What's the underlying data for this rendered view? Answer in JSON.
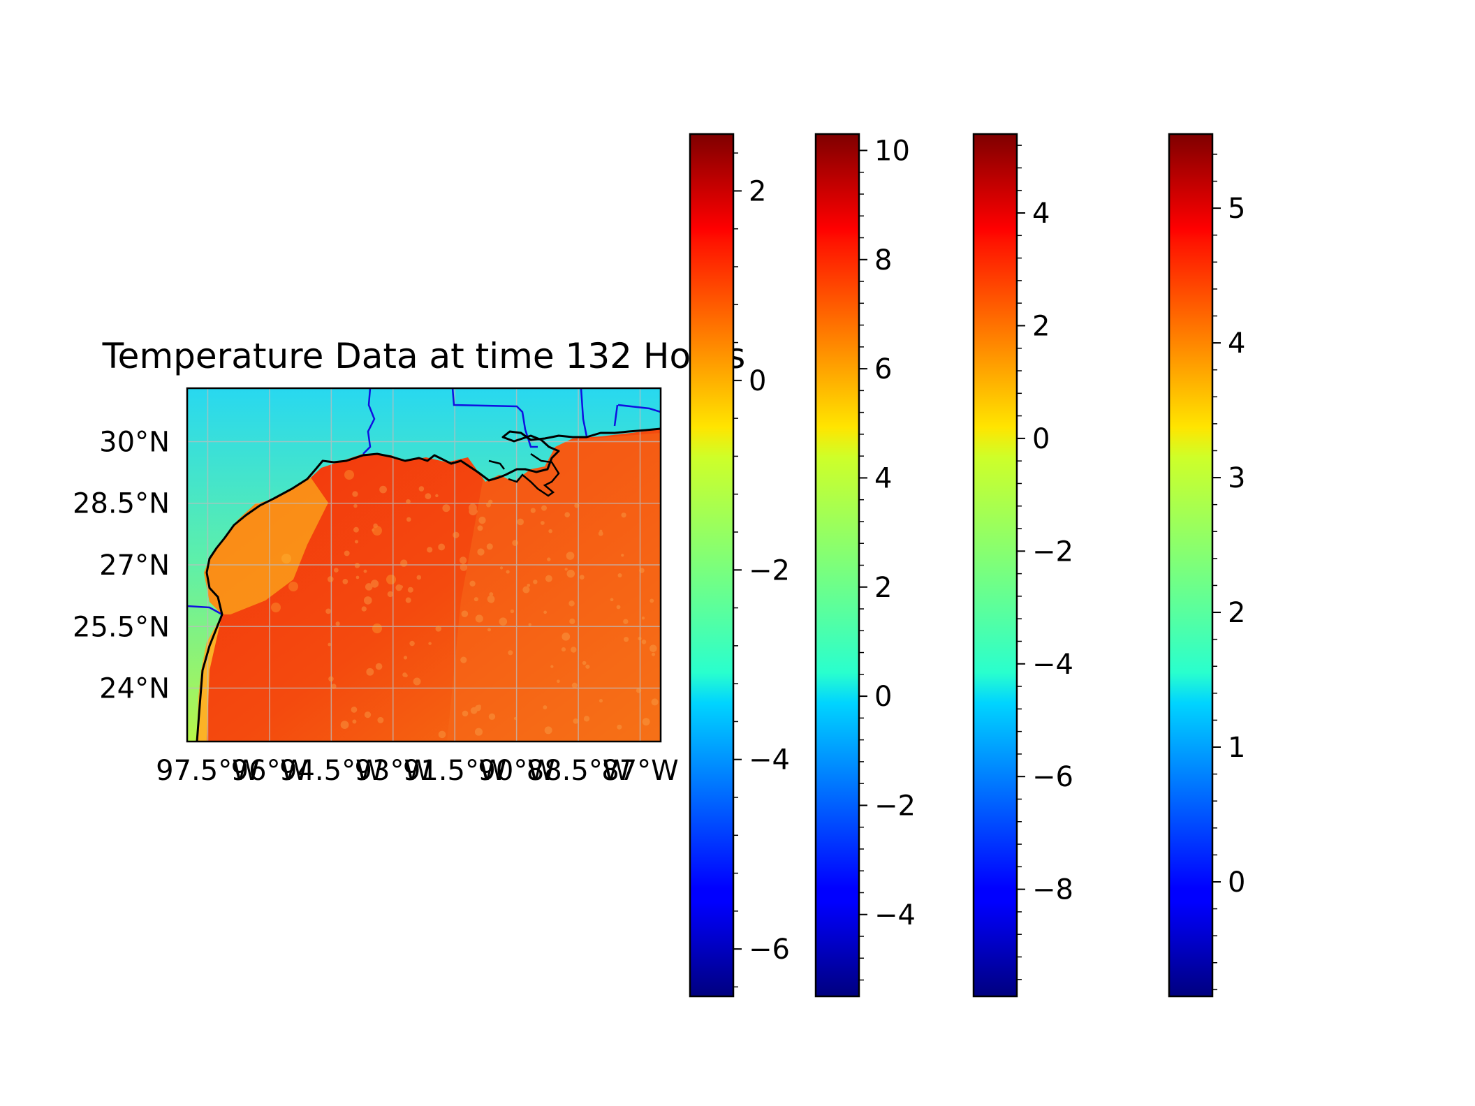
{
  "title": "Temperature Data at time 132 Hours",
  "map": {
    "lat_labels": [
      "30°N",
      "28.5°N",
      "27°N",
      "25.5°N",
      "24°N"
    ],
    "lon_labels": [
      "97.5°W",
      "96°W",
      "94.5°W",
      "93°W",
      "91.5°W",
      "90°W",
      "88.5°W",
      "87°W"
    ],
    "lat_values": [
      30,
      28.5,
      27,
      25.5,
      24
    ],
    "lon_values": [
      -97.5,
      -96,
      -94.5,
      -93,
      -91.5,
      -90,
      -88.5,
      -87
    ],
    "lon_range": [
      -98,
      -86.5
    ],
    "lat_range": [
      22.7,
      31.3
    ],
    "colors": {
      "land_north": "#40e8d0",
      "land_mid": "#a8f060",
      "ocean": "#f23a0c",
      "ocean_east": "#f56a10",
      "coastline": "#000000",
      "state_border": "#1010e0",
      "gridline": "#b0b0b0"
    }
  },
  "colorbars": [
    {
      "name": "colorbar-1",
      "range": [
        -6.5,
        2.6
      ],
      "major_ticks": [
        2,
        0,
        -2,
        -4,
        -6
      ],
      "labels": [
        "2",
        "0",
        "−2",
        "−4",
        "−6"
      ]
    },
    {
      "name": "colorbar-2",
      "range": [
        -5.5,
        10.3
      ],
      "major_ticks": [
        10,
        8,
        6,
        4,
        2,
        0,
        -2,
        -4
      ],
      "labels": [
        "10",
        "8",
        "6",
        "4",
        "2",
        "0",
        "−2",
        "−4"
      ]
    },
    {
      "name": "colorbar-3",
      "range": [
        -9.9,
        5.4
      ],
      "major_ticks": [
        4,
        2,
        0,
        -2,
        -4,
        -6,
        -8
      ],
      "labels": [
        "4",
        "2",
        "0",
        "−2",
        "−4",
        "−6",
        "−8"
      ]
    },
    {
      "name": "colorbar-4",
      "range": [
        -0.85,
        5.55
      ],
      "major_ticks": [
        5,
        4,
        3,
        2,
        1,
        0
      ],
      "labels": [
        "5",
        "4",
        "3",
        "2",
        "1",
        "0"
      ]
    }
  ],
  "colormap": "jet"
}
